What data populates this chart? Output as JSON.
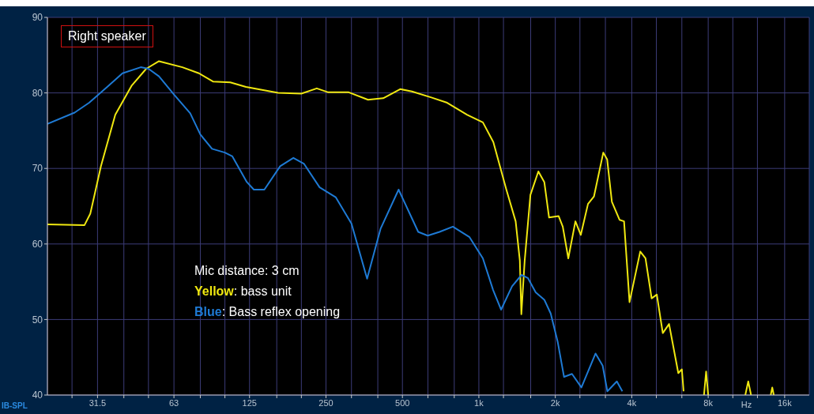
{
  "chart_data": {
    "type": "line",
    "annotations": [
      "Right speaker",
      "Mic distance: 3 cm",
      "Yellow: bass unit",
      "Blue: Bass reflex opening"
    ],
    "xlabel": "Hz",
    "ylabel": "IB-SPL",
    "log": "x",
    "grid": true,
    "line_style": "solid",
    "marker": "none",
    "xlim": [
      20,
      20000
    ],
    "ylim": [
      40,
      90
    ],
    "xticks": [
      {
        "value": 25,
        "label": null
      },
      {
        "value": 31.5,
        "label": "31.5"
      },
      {
        "value": 40,
        "label": null
      },
      {
        "value": 50,
        "label": null
      },
      63,
      {
        "value": 80,
        "label": null
      },
      {
        "value": 100,
        "label": null
      },
      125,
      {
        "value": 160,
        "label": null
      },
      {
        "value": 200,
        "label": null
      },
      250,
      {
        "value": 315,
        "label": null
      },
      {
        "value": 400,
        "label": null
      },
      500,
      {
        "value": 630,
        "label": null
      },
      {
        "value": 800,
        "label": null
      },
      {
        "value": 1000,
        "label": "1k"
      },
      {
        "value": 1250,
        "label": null
      },
      {
        "value": 1600,
        "label": null
      },
      {
        "value": 2000,
        "label": "2k"
      },
      {
        "value": 2500,
        "label": null
      },
      {
        "value": 3150,
        "label": null
      },
      {
        "value": 4000,
        "label": "4k"
      },
      {
        "value": 5000,
        "label": null
      },
      {
        "value": 6300,
        "label": null
      },
      {
        "value": 8000,
        "label": "8k"
      },
      {
        "value": 10000,
        "label": null
      },
      {
        "value": 12500,
        "label": null
      },
      {
        "value": 16000,
        "label": "16k"
      }
    ],
    "yticks": [
      40,
      50,
      60,
      70,
      80,
      90
    ],
    "series": [
      {
        "color": "#f0e810",
        "x": [
          20,
          28,
          29.5,
          32.5,
          37,
          43,
          49,
          55,
          68,
          79,
          90,
          105,
          121,
          162,
          200,
          230,
          254,
          306,
          366,
          420,
          490,
          545,
          650,
          750,
          900,
          1037,
          1140,
          1283,
          1396,
          1450,
          1470,
          1515,
          1596,
          1715,
          1810,
          1890,
          2060,
          2140,
          2250,
          2400,
          2520,
          2690,
          2840,
          3090,
          3200,
          3340,
          3580,
          3730,
          3920,
          4320,
          4530,
          4790,
          5020,
          5300,
          5610,
          6100,
          6300,
          6400,
          6500,
          7700,
          7850,
          8000,
          8100,
          11200,
          11500,
          11800,
          11900,
          14100,
          14300,
          14500
        ],
        "values": [
          62.6,
          62.5,
          64,
          70.3,
          77.1,
          81,
          83.2,
          84.2,
          83.4,
          82.6,
          81.5,
          81.4,
          80.8,
          80,
          79.9,
          80.6,
          80.1,
          80.1,
          79.1,
          79.3,
          80.5,
          80.2,
          79.4,
          78.7,
          77.1,
          76.1,
          73.5,
          67.2,
          63,
          57.8,
          50.7,
          57.8,
          66.5,
          69.6,
          68.2,
          63.5,
          63.7,
          62.3,
          58.1,
          63,
          61.2,
          65.3,
          66.3,
          72.1,
          71.2,
          65.6,
          63.2,
          63,
          52.3,
          59,
          58.1,
          52.8,
          53.3,
          48.2,
          49.4,
          42.9,
          43.4,
          40.5,
          null,
          40,
          43.1,
          40,
          null,
          40,
          41.8,
          40,
          null,
          40,
          41,
          40
        ]
      },
      {
        "color": "#1e7ad4",
        "x": [
          20,
          25.6,
          29.2,
          34.4,
          39.5,
          46.6,
          50,
          55,
          63,
          73,
          80,
          89,
          100,
          107,
          122,
          130,
          143,
          165,
          186,
          205,
          236,
          273,
          315,
          363,
          410,
          483,
          577,
          629,
          700,
          790,
          919,
          1037,
          1138,
          1223,
          1351,
          1472,
          1559,
          1674,
          1811,
          1918,
          2045,
          2165,
          2326,
          2534,
          2881,
          3072,
          3206,
          3494,
          3673
        ],
        "values": [
          75.9,
          77.4,
          78.7,
          80.8,
          82.6,
          83.4,
          83.2,
          82.2,
          79.8,
          77.3,
          74.5,
          72.6,
          72.1,
          71.6,
          68.2,
          67.2,
          67.2,
          70.3,
          71.4,
          70.6,
          67.5,
          66.2,
          62.7,
          55.4,
          62,
          67.2,
          61.6,
          61.1,
          61.6,
          62.3,
          60.9,
          58.1,
          53.9,
          51.3,
          54.4,
          55.9,
          55.5,
          53.6,
          52.6,
          50.8,
          47,
          42.4,
          42.8,
          41,
          45.5,
          43.9,
          40.5,
          41.8,
          40.5
        ]
      }
    ]
  }
}
